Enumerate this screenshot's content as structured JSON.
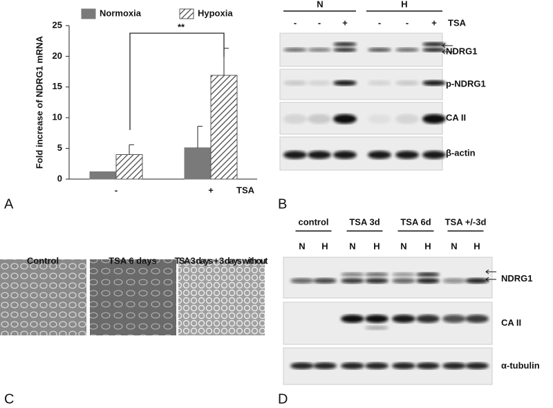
{
  "chart_data": {
    "type": "bar",
    "y_label": "Fold increase of NDRG1 mRNA",
    "x_label": "TSA",
    "categories": [
      "-",
      "+"
    ],
    "series": [
      {
        "name": "Normoxia",
        "color": "#7a7a7a",
        "hatch": false,
        "values": [
          1.2,
          5.1
        ],
        "errors": [
          null,
          3.5
        ]
      },
      {
        "name": "Hypoxia",
        "color": "#555555",
        "hatch": true,
        "values": [
          4.0,
          16.9
        ],
        "errors": [
          1.6,
          4.4
        ]
      }
    ],
    "ylim": [
      0,
      25
    ],
    "yticks": [
      0,
      5,
      10,
      15,
      20,
      25
    ],
    "annotation": "**"
  },
  "panel_labels": [
    "A",
    "B",
    "C",
    "D"
  ],
  "panel_b": {
    "groups": [
      "N",
      "H"
    ],
    "treatments": [
      "-",
      "-",
      "+",
      "-",
      "-",
      "+"
    ],
    "treatment_label": "TSA",
    "bands": [
      "NDRG1",
      "p-NDRG1",
      "CA II",
      "β-actin"
    ]
  },
  "panel_c": {
    "images": [
      "Control",
      "TSA 6 days",
      "TSA 3 days + 3 days without"
    ]
  },
  "panel_d": {
    "groups": [
      "control",
      "TSA 3d",
      "TSA 6d",
      "TSA +/-3d"
    ],
    "lanes": [
      "N",
      "H",
      "N",
      "H",
      "N",
      "H",
      "N",
      "H"
    ],
    "bands": [
      "NDRG1",
      "CA II",
      "α-tubulin"
    ]
  }
}
